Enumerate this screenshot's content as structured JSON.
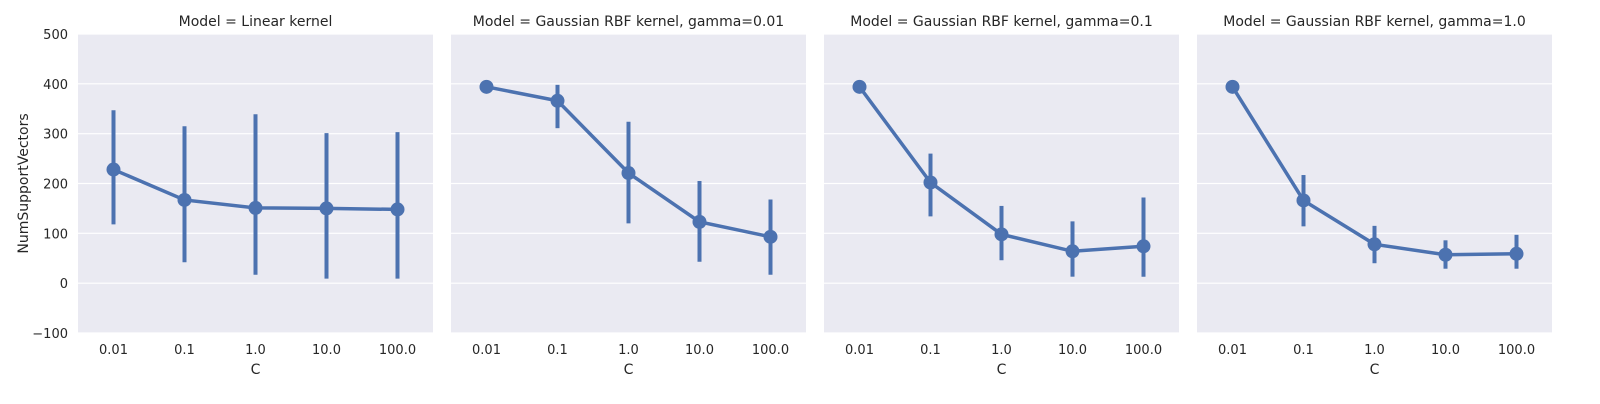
{
  "chart_data": {
    "type": "line",
    "xlabel": "C",
    "ylabel": "NumSupportVectors",
    "ylim": [
      -100,
      500
    ],
    "yticks": [
      "−100",
      "0",
      "100",
      "200",
      "300",
      "400",
      "500"
    ],
    "categories": [
      "0.01",
      "0.1",
      "1.0",
      "10.0",
      "100.0"
    ],
    "grid": true,
    "sharey": true,
    "facets": [
      {
        "title": "Model = Linear kernel",
        "values": [
          228,
          167,
          151,
          150,
          148
        ],
        "ci_low": [
          118,
          42,
          17,
          9,
          9
        ],
        "ci_high": [
          347,
          315,
          339,
          301,
          303
        ]
      },
      {
        "title": "Model = Gaussian RBF kernel, gamma=0.01",
        "values": [
          394,
          366,
          221,
          123,
          93
        ],
        "ci_low": [
          394,
          311,
          120,
          43,
          17
        ],
        "ci_high": [
          394,
          398,
          324,
          205,
          168
        ]
      },
      {
        "title": "Model = Gaussian RBF kernel, gamma=0.1",
        "values": [
          394,
          202,
          98,
          64,
          74
        ],
        "ci_low": [
          394,
          134,
          46,
          13,
          13
        ],
        "ci_high": [
          394,
          260,
          155,
          124,
          172
        ]
      },
      {
        "title": "Model = Gaussian RBF kernel, gamma=1.0",
        "values": [
          394,
          166,
          78,
          57,
          59
        ],
        "ci_low": [
          394,
          114,
          40,
          29,
          29
        ],
        "ci_high": [
          394,
          217,
          115,
          86,
          97
        ]
      }
    ]
  }
}
